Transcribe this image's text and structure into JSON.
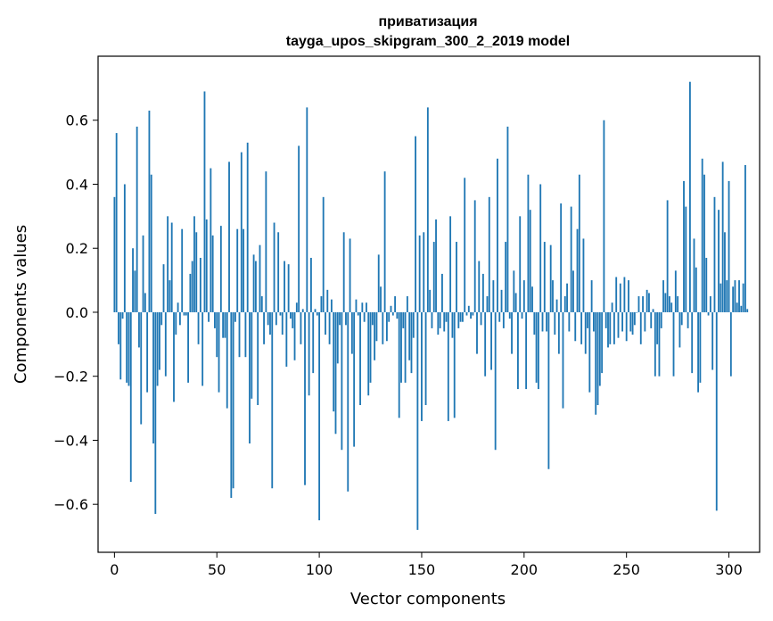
{
  "chart_data": {
    "type": "bar",
    "title": "приватизация",
    "subtitle": "tayga_upos_skipgram_300_2_2019 model",
    "xlabel": "Vector components",
    "ylabel": "Components values",
    "xlim": [
      -8,
      315
    ],
    "ylim": [
      -0.75,
      0.8
    ],
    "xticks": [
      0,
      50,
      100,
      150,
      200,
      250,
      300
    ],
    "xtick_labels": [
      "0",
      "50",
      "100",
      "150",
      "200",
      "250",
      "300"
    ],
    "yticks": [
      -0.6,
      -0.4,
      -0.2,
      0.0,
      0.2,
      0.4,
      0.6
    ],
    "ytick_labels": [
      "−0.6",
      "−0.4",
      "−0.2",
      "0.0",
      "0.2",
      "0.4",
      "0.6"
    ],
    "grid": false,
    "bar_color": "#1f77b4",
    "x_start": 0,
    "values": [
      0.36,
      0.56,
      -0.1,
      -0.21,
      -0.02,
      0.4,
      -0.22,
      -0.23,
      -0.53,
      0.2,
      0.13,
      0.58,
      -0.11,
      -0.35,
      0.24,
      0.06,
      -0.25,
      0.63,
      0.43,
      -0.41,
      -0.63,
      -0.23,
      -0.18,
      -0.04,
      0.15,
      -0.2,
      0.3,
      0.1,
      0.28,
      -0.28,
      -0.07,
      0.03,
      -0.04,
      0.26,
      -0.01,
      -0.01,
      -0.22,
      0.12,
      0.16,
      0.3,
      0.25,
      -0.1,
      0.17,
      -0.23,
      0.69,
      0.29,
      -0.03,
      0.45,
      0.24,
      -0.05,
      -0.14,
      -0.25,
      0.27,
      -0.08,
      -0.08,
      -0.3,
      0.47,
      -0.58,
      -0.55,
      -0.03,
      0.26,
      -0.14,
      0.5,
      0.26,
      -0.14,
      0.53,
      -0.41,
      -0.27,
      0.18,
      0.16,
      -0.29,
      0.21,
      0.05,
      -0.1,
      0.44,
      -0.04,
      -0.07,
      -0.55,
      0.28,
      -0.04,
      0.25,
      -0.01,
      -0.07,
      0.16,
      -0.17,
      0.15,
      -0.02,
      -0.05,
      -0.15,
      0.03,
      0.52,
      -0.1,
      0.01,
      -0.54,
      0.64,
      -0.26,
      0.17,
      -0.19,
      0.01,
      -0.01,
      -0.65,
      0.05,
      0.36,
      -0.07,
      0.07,
      -0.1,
      0.04,
      -0.31,
      -0.38,
      -0.16,
      -0.04,
      -0.43,
      0.25,
      -0.04,
      -0.56,
      0.23,
      -0.13,
      -0.42,
      0.04,
      -0.01,
      -0.29,
      0.03,
      -0.03,
      0.03,
      -0.26,
      -0.22,
      -0.04,
      -0.15,
      -0.09,
      0.18,
      0.08,
      -0.1,
      0.44,
      -0.09,
      -0.03,
      0.02,
      -0.01,
      0.05,
      -0.02,
      -0.33,
      -0.22,
      -0.05,
      -0.22,
      0.05,
      -0.15,
      -0.19,
      -0.08,
      0.55,
      -0.68,
      0.24,
      -0.34,
      0.25,
      -0.29,
      0.64,
      0.07,
      -0.05,
      0.22,
      0.29,
      -0.07,
      -0.05,
      0.12,
      -0.06,
      -0.03,
      -0.34,
      0.3,
      -0.08,
      -0.33,
      0.22,
      -0.05,
      -0.03,
      -0.03,
      0.42,
      -0.01,
      0.02,
      -0.02,
      -0.01,
      0.35,
      -0.13,
      0.16,
      -0.04,
      0.12,
      -0.2,
      0.05,
      0.36,
      -0.18,
      0.1,
      -0.43,
      0.48,
      -0.03,
      0.07,
      -0.05,
      0.22,
      0.58,
      -0.02,
      -0.13,
      0.13,
      0.06,
      -0.24,
      0.3,
      -0.02,
      0.1,
      -0.24,
      0.43,
      0.32,
      0.08,
      -0.07,
      -0.22,
      -0.24,
      0.4,
      -0.06,
      0.22,
      -0.06,
      -0.49,
      0.21,
      0.1,
      -0.07,
      0.04,
      -0.13,
      0.34,
      -0.3,
      0.05,
      0.09,
      -0.06,
      0.33,
      0.13,
      -0.09,
      0.26,
      0.43,
      -0.1,
      0.23,
      -0.13,
      -0.05,
      -0.25,
      0.1,
      -0.06,
      -0.32,
      -0.29,
      -0.23,
      -0.19,
      0.6,
      -0.05,
      -0.11,
      -0.1,
      0.03,
      -0.1,
      0.11,
      -0.08,
      0.09,
      -0.06,
      0.11,
      -0.09,
      0.1,
      -0.06,
      -0.07,
      -0.04,
      0.0,
      0.05,
      -0.1,
      0.05,
      -0.06,
      0.07,
      0.06,
      -0.05,
      0.01,
      -0.2,
      -0.1,
      -0.2,
      -0.05,
      0.1,
      0.06,
      0.35,
      0.05,
      0.03,
      -0.2,
      0.13,
      0.05,
      -0.11,
      -0.04,
      0.41,
      0.33,
      -0.05,
      0.72,
      -0.19,
      0.23,
      0.14,
      -0.25,
      -0.22,
      0.48,
      0.43,
      0.17,
      -0.01,
      0.05,
      -0.18,
      0.36,
      -0.62,
      0.32,
      0.09,
      0.47,
      0.25,
      0.1,
      0.41,
      -0.2,
      0.08,
      0.1,
      0.03,
      0.1,
      0.02,
      0.09,
      0.46,
      0.01
    ]
  }
}
